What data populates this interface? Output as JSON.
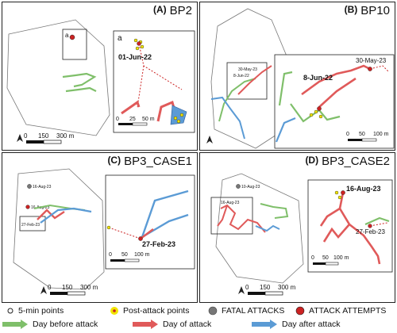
{
  "panels": [
    {
      "letter": "(A)",
      "name": "BP2",
      "date_label": "01-Jun-22",
      "inset_letter": "a",
      "locator_letter": "a",
      "inset_scale": [
        "0",
        "25",
        "50 m"
      ],
      "scale": [
        "0",
        "150",
        "300 m"
      ]
    },
    {
      "letter": "(B)",
      "name": "BP10",
      "date_label": "8-Jun-22",
      "date_label_2": "30-May-23",
      "locator_date_1": "30-May-23",
      "locator_date_2": "8-Jun-22",
      "inset_scale": [
        "0",
        "50",
        "100 m"
      ],
      "scale": [
        "0",
        "150",
        "300 m"
      ]
    },
    {
      "letter": "(C)",
      "name": "BP3_CASE1",
      "date_label": "27-Feb-23",
      "locator_date_1": "16-Aug-23",
      "locator_date_2": "16-Aug-23",
      "locator_date_3": "27-Feb-23",
      "inset_scale": [
        "0",
        "50",
        "100 m"
      ],
      "scale": [
        "0",
        "150",
        "300 m"
      ]
    },
    {
      "letter": "(D)",
      "name": "BP3_CASE2",
      "date_label": "16-Aug-23",
      "date_label_2": "27-Feb-23",
      "locator_date_1": "10-Aug-23",
      "locator_date_2": "16-Aug-23",
      "inset_scale": [
        "0",
        "50",
        "100 m"
      ],
      "scale": [
        "0",
        "150",
        "300 m"
      ]
    }
  ],
  "north_symbol": "A",
  "legend": {
    "five_min": "5-min points",
    "post_attack": "Post-attack points",
    "fatal": "FATAL ATTACKS",
    "attempts": "ATTACK ATTEMPTS",
    "day_before": "Day before attack",
    "day_of": "Day of attack",
    "day_after": "Day after attack"
  },
  "colors": {
    "green": "#7fbf6a",
    "red": "#e05a5a",
    "blue": "#5b9bd5",
    "yellow": "#f2e500",
    "fatal": "#777777",
    "attempt": "#cc2222"
  }
}
